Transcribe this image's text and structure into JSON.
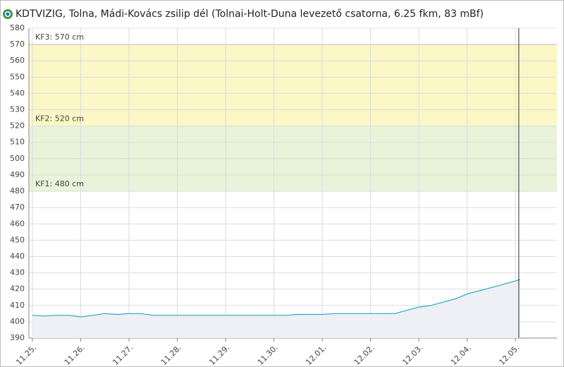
{
  "chart_data": {
    "type": "line",
    "title": "KDTVIZIG, Tolna, Mádi-Kovács zsilip dél (Tolnai-Holt-Duna levezető csatorna, 6.25 fkm, 83 mBf)",
    "x": [
      0,
      0.25,
      0.5,
      0.75,
      1,
      1.25,
      1.5,
      1.75,
      2,
      2.25,
      2.5,
      2.75,
      3,
      3.25,
      3.5,
      3.75,
      4,
      4.25,
      4.5,
      4.75,
      5,
      5.25,
      5.5,
      5.75,
      6,
      6.25,
      6.5,
      6.75,
      7,
      7.25,
      7.5,
      7.75,
      8,
      8.25,
      8.5,
      8.75,
      9,
      9.25,
      9.5,
      9.75,
      10,
      10.1
    ],
    "values": [
      404,
      403.5,
      404,
      404,
      403,
      404,
      405,
      404.5,
      405,
      405,
      404,
      404,
      404,
      404,
      404,
      404,
      404,
      404,
      404,
      404,
      404,
      404,
      404.5,
      404.5,
      404.5,
      405,
      405,
      405,
      405,
      405,
      405,
      407,
      409,
      410,
      412,
      414,
      417,
      419,
      421,
      423,
      425,
      426
    ],
    "color": "#2aa7c9",
    "area_color": "#eef0f6",
    "xlim": [
      -0.073,
      10.86
    ],
    "xticks": [
      {
        "value": 0,
        "label": "11.25."
      },
      {
        "value": 1,
        "label": "11.26."
      },
      {
        "value": 2,
        "label": "11.27."
      },
      {
        "value": 3,
        "label": "11.28."
      },
      {
        "value": 4,
        "label": "11.29."
      },
      {
        "value": 5,
        "label": "11.30."
      },
      {
        "value": 6,
        "label": "12.01."
      },
      {
        "value": 7,
        "label": "12.02."
      },
      {
        "value": 8,
        "label": "12.03."
      },
      {
        "value": 9,
        "label": "12.04."
      },
      {
        "value": 10,
        "label": "12.05."
      }
    ],
    "ylim": [
      390,
      580
    ],
    "yticks": [
      390,
      400,
      410,
      420,
      430,
      440,
      450,
      460,
      470,
      480,
      490,
      500,
      510,
      520,
      530,
      540,
      550,
      560,
      570,
      580
    ],
    "grid": true,
    "thresholds": [
      {
        "value": 480,
        "label": "KF1: 480 cm",
        "color": "#e9f3da"
      },
      {
        "value": 520,
        "label": "KF2: 520 cm",
        "color": "#fbf7c6"
      },
      {
        "value": 570,
        "label": "KF3: 570 cm",
        "color": "#e8a0a0"
      }
    ],
    "now_x": 10.07
  }
}
